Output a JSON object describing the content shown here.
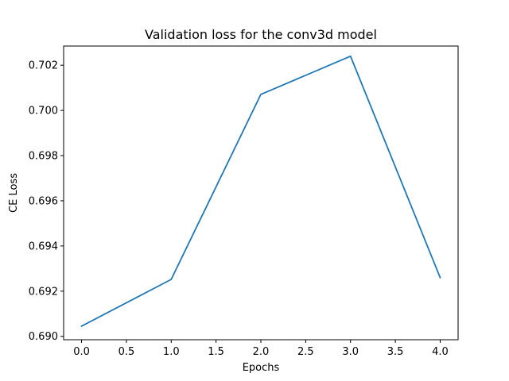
{
  "chart_data": {
    "type": "line",
    "title": "Validation loss for the conv3d model",
    "xlabel": "Epochs",
    "ylabel": "CE Loss",
    "xlim": [
      -0.2,
      4.2
    ],
    "ylim": [
      0.68985,
      0.70285
    ],
    "xticks": [
      0.0,
      0.5,
      1.0,
      1.5,
      2.0,
      2.5,
      3.0,
      3.5,
      4.0
    ],
    "xtick_labels": [
      "0.0",
      "0.5",
      "1.0",
      "1.5",
      "2.0",
      "2.5",
      "3.0",
      "3.5",
      "4.0"
    ],
    "yticks": [
      0.69,
      0.692,
      0.694,
      0.696,
      0.698,
      0.7,
      0.702
    ],
    "ytick_labels": [
      "0.690",
      "0.692",
      "0.694",
      "0.696",
      "0.698",
      "0.700",
      "0.702"
    ],
    "grid": false,
    "series": [
      {
        "color": "#1f77b4",
        "x": [
          0,
          1,
          2,
          3,
          4
        ],
        "y": [
          0.69045,
          0.69252,
          0.70071,
          0.7024,
          0.6926
        ]
      }
    ]
  }
}
